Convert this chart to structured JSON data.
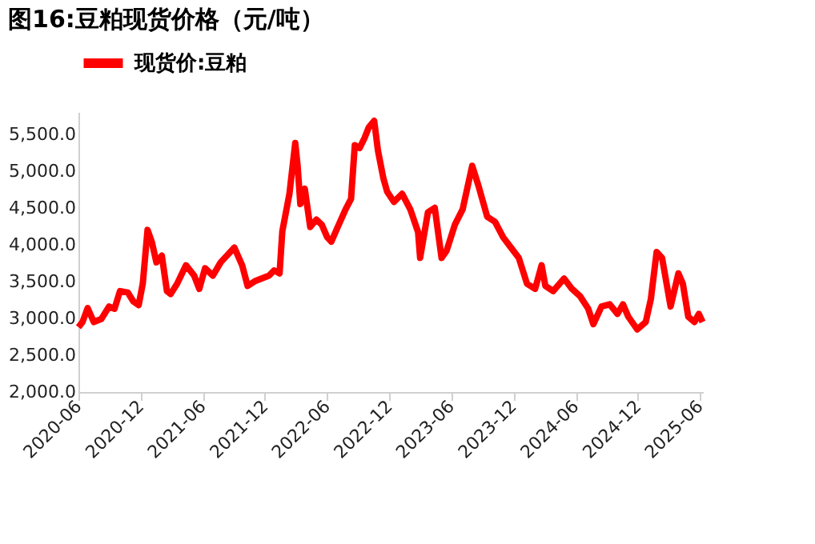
{
  "chart_data": {
    "type": "line",
    "title": "图16:豆粕现货价格（元/吨）",
    "x": [
      "2020-06-01",
      "2020-06-13",
      "2020-06-28",
      "2020-07-16",
      "2020-08-07",
      "2020-08-30",
      "2020-09-15",
      "2020-10-01",
      "2020-10-24",
      "2020-11-09",
      "2020-11-25",
      "2020-12-07",
      "2020-12-21",
      "2021-01-03",
      "2021-01-16",
      "2021-02-01",
      "2021-02-16",
      "2021-02-27",
      "2021-03-18",
      "2021-04-13",
      "2021-05-07",
      "2021-05-22",
      "2021-06-08",
      "2021-07-01",
      "2021-07-24",
      "2021-09-02",
      "2021-09-25",
      "2021-10-11",
      "2021-11-04",
      "2021-12-13",
      "2021-12-28",
      "2022-01-13",
      "2022-01-21",
      "2022-02-11",
      "2022-02-28",
      "2022-03-07",
      "2022-03-15",
      "2022-03-28",
      "2022-04-13",
      "2022-05-01",
      "2022-05-17",
      "2022-06-02",
      "2022-06-14",
      "2022-07-03",
      "2022-07-26",
      "2022-08-11",
      "2022-08-22",
      "2022-09-05",
      "2022-09-20",
      "2022-10-02",
      "2022-10-18",
      "2022-10-29",
      "2022-11-14",
      "2022-11-25",
      "2022-12-15",
      "2023-01-08",
      "2023-02-01",
      "2023-02-24",
      "2023-03-02",
      "2023-03-25",
      "2023-04-14",
      "2023-05-04",
      "2023-05-19",
      "2023-06-12",
      "2023-07-05",
      "2023-08-02",
      "2023-08-21",
      "2023-09-15",
      "2023-10-08",
      "2023-11-01",
      "2023-11-24",
      "2023-12-17",
      "2024-01-10",
      "2024-02-03",
      "2024-02-22",
      "2024-03-04",
      "2024-03-27",
      "2024-04-28",
      "2024-05-21",
      "2024-06-14",
      "2024-07-08",
      "2024-07-23",
      "2024-08-16",
      "2024-09-09",
      "2024-10-02",
      "2024-10-18",
      "2024-11-03",
      "2024-11-29",
      "2024-12-24",
      "2025-01-08",
      "2025-01-25",
      "2025-02-10",
      "2025-03-07",
      "2025-03-30",
      "2025-04-12",
      "2025-04-28",
      "2025-05-16",
      "2025-05-29",
      "2025-06-09"
    ],
    "series": [
      {
        "name": "现货价:豆粕",
        "color": "#ff0000",
        "values": [
          2880,
          2950,
          3140,
          2950,
          2990,
          3160,
          3130,
          3370,
          3350,
          3230,
          3180,
          3470,
          4200,
          4030,
          3760,
          3850,
          3370,
          3330,
          3470,
          3720,
          3580,
          3400,
          3680,
          3580,
          3760,
          3960,
          3720,
          3440,
          3510,
          3580,
          3650,
          3610,
          4180,
          4690,
          5380,
          5070,
          4550,
          4760,
          4240,
          4340,
          4270,
          4100,
          4040,
          4240,
          4480,
          4620,
          5350,
          5310,
          5450,
          5590,
          5680,
          5280,
          4900,
          4720,
          4580,
          4690,
          4480,
          4170,
          3820,
          4440,
          4500,
          3820,
          3920,
          4270,
          4480,
          5070,
          4790,
          4380,
          4310,
          4100,
          3960,
          3820,
          3470,
          3400,
          3720,
          3440,
          3370,
          3540,
          3400,
          3300,
          3130,
          2920,
          3160,
          3190,
          3060,
          3190,
          3020,
          2850,
          2950,
          3260,
          3900,
          3820,
          3160,
          3610,
          3470,
          3020,
          2950,
          3060,
          2950
        ]
      }
    ],
    "xlim": [
      "2020-06-01",
      "2025-06-10"
    ],
    "xticks": [
      {
        "value": "2020-06-01",
        "label": "2020-06"
      },
      {
        "value": "2020-12-01",
        "label": "2020-12"
      },
      {
        "value": "2021-06-01",
        "label": "2021-06"
      },
      {
        "value": "2021-12-01",
        "label": "2021-12"
      },
      {
        "value": "2022-06-01",
        "label": "2022-06"
      },
      {
        "value": "2022-12-01",
        "label": "2022-12"
      },
      {
        "value": "2023-06-01",
        "label": "2023-06"
      },
      {
        "value": "2023-12-01",
        "label": "2023-12"
      },
      {
        "value": "2024-06-01",
        "label": "2024-06"
      },
      {
        "value": "2024-12-01",
        "label": "2024-12"
      },
      {
        "value": "2025-06-01",
        "label": "2025-06"
      }
    ],
    "ylim": [
      2000,
      5800
    ],
    "yticks": [
      {
        "value": 2000,
        "label": "2,000.0"
      },
      {
        "value": 2500,
        "label": "2,500.0"
      },
      {
        "value": 3000,
        "label": "3,000.0"
      },
      {
        "value": 3500,
        "label": "3,500.0"
      },
      {
        "value": 4000,
        "label": "4,000.0"
      },
      {
        "value": 4500,
        "label": "4,500.0"
      },
      {
        "value": 5000,
        "label": "5,000.0"
      },
      {
        "value": 5500,
        "label": "5,500.0"
      }
    ],
    "grid": false,
    "legend": "top",
    "marker": "none",
    "line_style": "solid"
  }
}
